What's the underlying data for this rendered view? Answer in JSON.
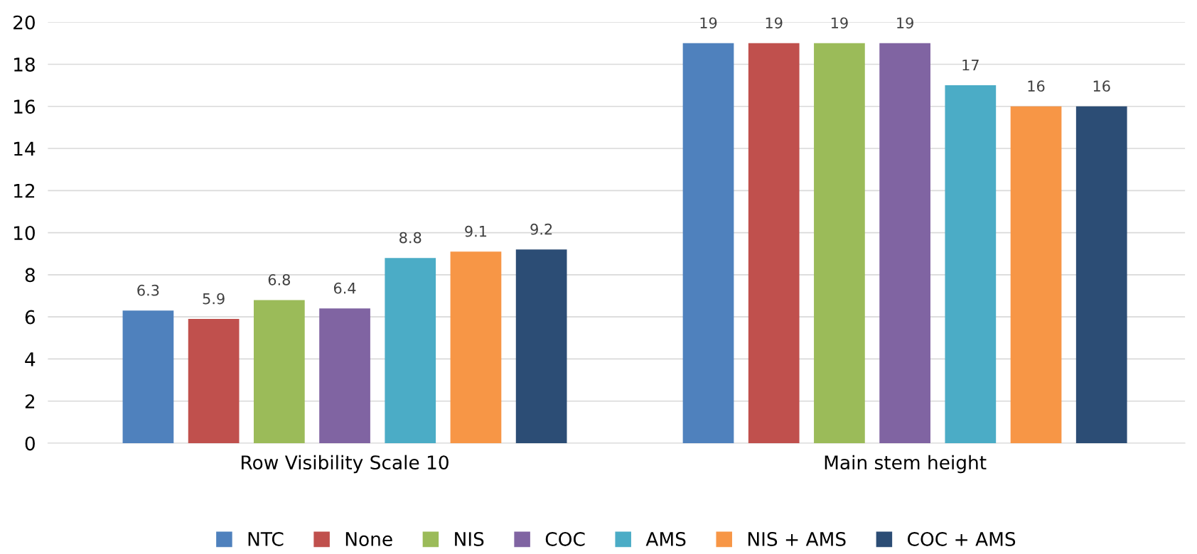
{
  "chart_data": {
    "type": "bar",
    "categories": [
      "Row Visibility Scale 10",
      "Main stem height"
    ],
    "series": [
      {
        "name": "NTC",
        "color": "#4f81bd",
        "values": [
          6.3,
          19
        ]
      },
      {
        "name": "None",
        "color": "#c0504d",
        "values": [
          5.9,
          19
        ]
      },
      {
        "name": "NIS",
        "color": "#9bbb59",
        "values": [
          6.8,
          19
        ]
      },
      {
        "name": "COC",
        "color": "#8064a2",
        "values": [
          6.4,
          19
        ]
      },
      {
        "name": "AMS",
        "color": "#4bacc6",
        "values": [
          8.8,
          17
        ]
      },
      {
        "name": "NIS + AMS",
        "color": "#f79646",
        "values": [
          9.1,
          16
        ]
      },
      {
        "name": "COC + AMS",
        "color": "#2c4d75",
        "values": [
          9.2,
          16
        ]
      }
    ],
    "ylim": [
      0,
      20
    ],
    "yticks": [
      0,
      2,
      4,
      6,
      8,
      10,
      12,
      14,
      16,
      18,
      20
    ],
    "grid": "y",
    "legend": "bottom",
    "data_labels": true
  }
}
